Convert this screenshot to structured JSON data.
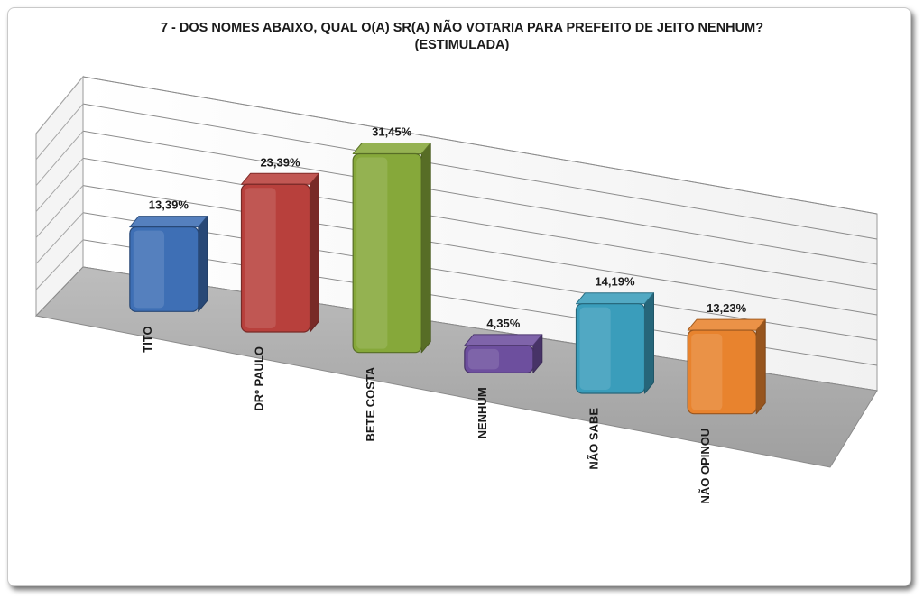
{
  "chart_data": {
    "type": "bar",
    "title": "7 -  DOS NOMES ABAIXO, QUAL O(A) SR(A) NÃO VOTARIA PARA PREFEITO DE JEITO NENHUM?",
    "subtitle": "(ESTIMULADA)",
    "categories": [
      "TITO",
      "DRº PAULO",
      "BETE COSTA",
      "NENHUM",
      "NÃO SABE",
      "NÃO OPINOU"
    ],
    "values": [
      13.39,
      23.39,
      31.45,
      4.35,
      14.19,
      13.23
    ],
    "data_labels": [
      "13,39%",
      "23,39%",
      "31,45%",
      "4,35%",
      "14,19%",
      "13,23%"
    ],
    "colors": [
      "#3e6fb5",
      "#b8403c",
      "#86a83a",
      "#6d4f9e",
      "#3a9dbb",
      "#e8832e"
    ],
    "xlabel": "",
    "ylabel": "",
    "ylim": [
      0,
      35
    ],
    "grid": true,
    "legend": "none"
  }
}
